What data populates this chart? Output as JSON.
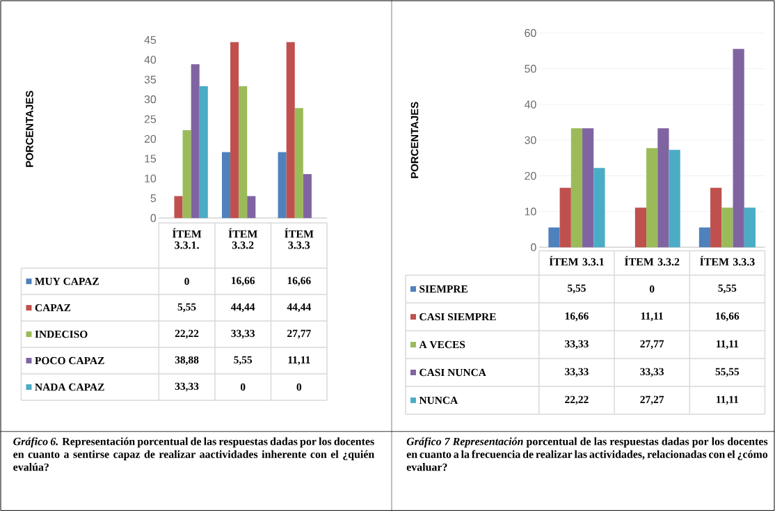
{
  "chart_data": [
    {
      "type": "bar",
      "ylabel": "PORCENTAJES",
      "categories": [
        "ÍTEM 3.3.1.",
        "ÍTEM 3.3.2",
        "ÍTEM 3.3.3"
      ],
      "ylim": [
        0,
        45
      ],
      "yticks": [
        0,
        5,
        10,
        15,
        20,
        25,
        30,
        35,
        40,
        45
      ],
      "legend": "bottom",
      "series": [
        {
          "name": "MUY CAPAZ",
          "color": "#4f81bd",
          "values": [
            0,
            16.66,
            16.66
          ],
          "value_labels": [
            "0",
            "16,66",
            "16,66"
          ]
        },
        {
          "name": "CAPAZ",
          "color": "#c0504d",
          "values": [
            5.55,
            44.44,
            44.44
          ],
          "value_labels": [
            "5,55",
            "44,44",
            "44,44"
          ]
        },
        {
          "name": "INDECISO",
          "color": "#9bbb59",
          "values": [
            22.22,
            33.33,
            27.77
          ],
          "value_labels": [
            "22,22",
            "33,33",
            "27,77"
          ]
        },
        {
          "name": "POCO CAPAZ",
          "color": "#8064a2",
          "values": [
            38.88,
            5.55,
            11.11
          ],
          "value_labels": [
            "38,88",
            "5,55",
            "11,11"
          ]
        },
        {
          "name": "NADA CAPAZ",
          "color": "#4bacc6",
          "values": [
            33.33,
            0,
            0
          ],
          "value_labels": [
            "33,33",
            "0",
            "0"
          ]
        }
      ],
      "annotations": [
        "*Gráfico 6.*  **Representación porcentual de las respuestas dadas por los docentes en cuanto a sentirse capaz de realizar aactividades inherente con el ¿quién evalúa?**"
      ]
    },
    {
      "type": "bar",
      "ylabel": "PORCENTAJES",
      "categories": [
        "ÍTEM 3.3.1",
        "ÍTEM 3.3.2",
        "ÍTEM 3.3.3"
      ],
      "ylim": [
        0,
        60
      ],
      "yticks": [
        0,
        10,
        20,
        30,
        40,
        50,
        60
      ],
      "grid": "y",
      "legend": "bottom",
      "series": [
        {
          "name": "SIEMPRE",
          "color": "#4f81bd",
          "values": [
            5.55,
            0,
            5.55
          ],
          "value_labels": [
            "5,55",
            "0",
            "5,55"
          ]
        },
        {
          "name": "CASI SIEMPRE",
          "color": "#c0504d",
          "values": [
            16.66,
            11.11,
            16.66
          ],
          "value_labels": [
            "16,66",
            "11,11",
            "16,66"
          ]
        },
        {
          "name": "A VECES",
          "color": "#9bbb59",
          "values": [
            33.33,
            27.77,
            11.11
          ],
          "value_labels": [
            "33,33",
            "27,77",
            "11,11"
          ]
        },
        {
          "name": "CASI NUNCA",
          "color": "#8064a2",
          "values": [
            33.33,
            33.33,
            55.55
          ],
          "value_labels": [
            "33,33",
            "33,33",
            "55,55"
          ]
        },
        {
          "name": "NUNCA",
          "color": "#4bacc6",
          "values": [
            22.22,
            27.27,
            11.11
          ],
          "value_labels": [
            "22,22",
            "27,27",
            "11,11"
          ]
        }
      ],
      "annotations": [
        "*Gráfico 7 Representación* **porcentual de las respuestas dadas por los docentes en cuanto a la frecuencia de realizar las actividades, relacionadas  con el ¿cómo evaluar?**"
      ]
    }
  ]
}
